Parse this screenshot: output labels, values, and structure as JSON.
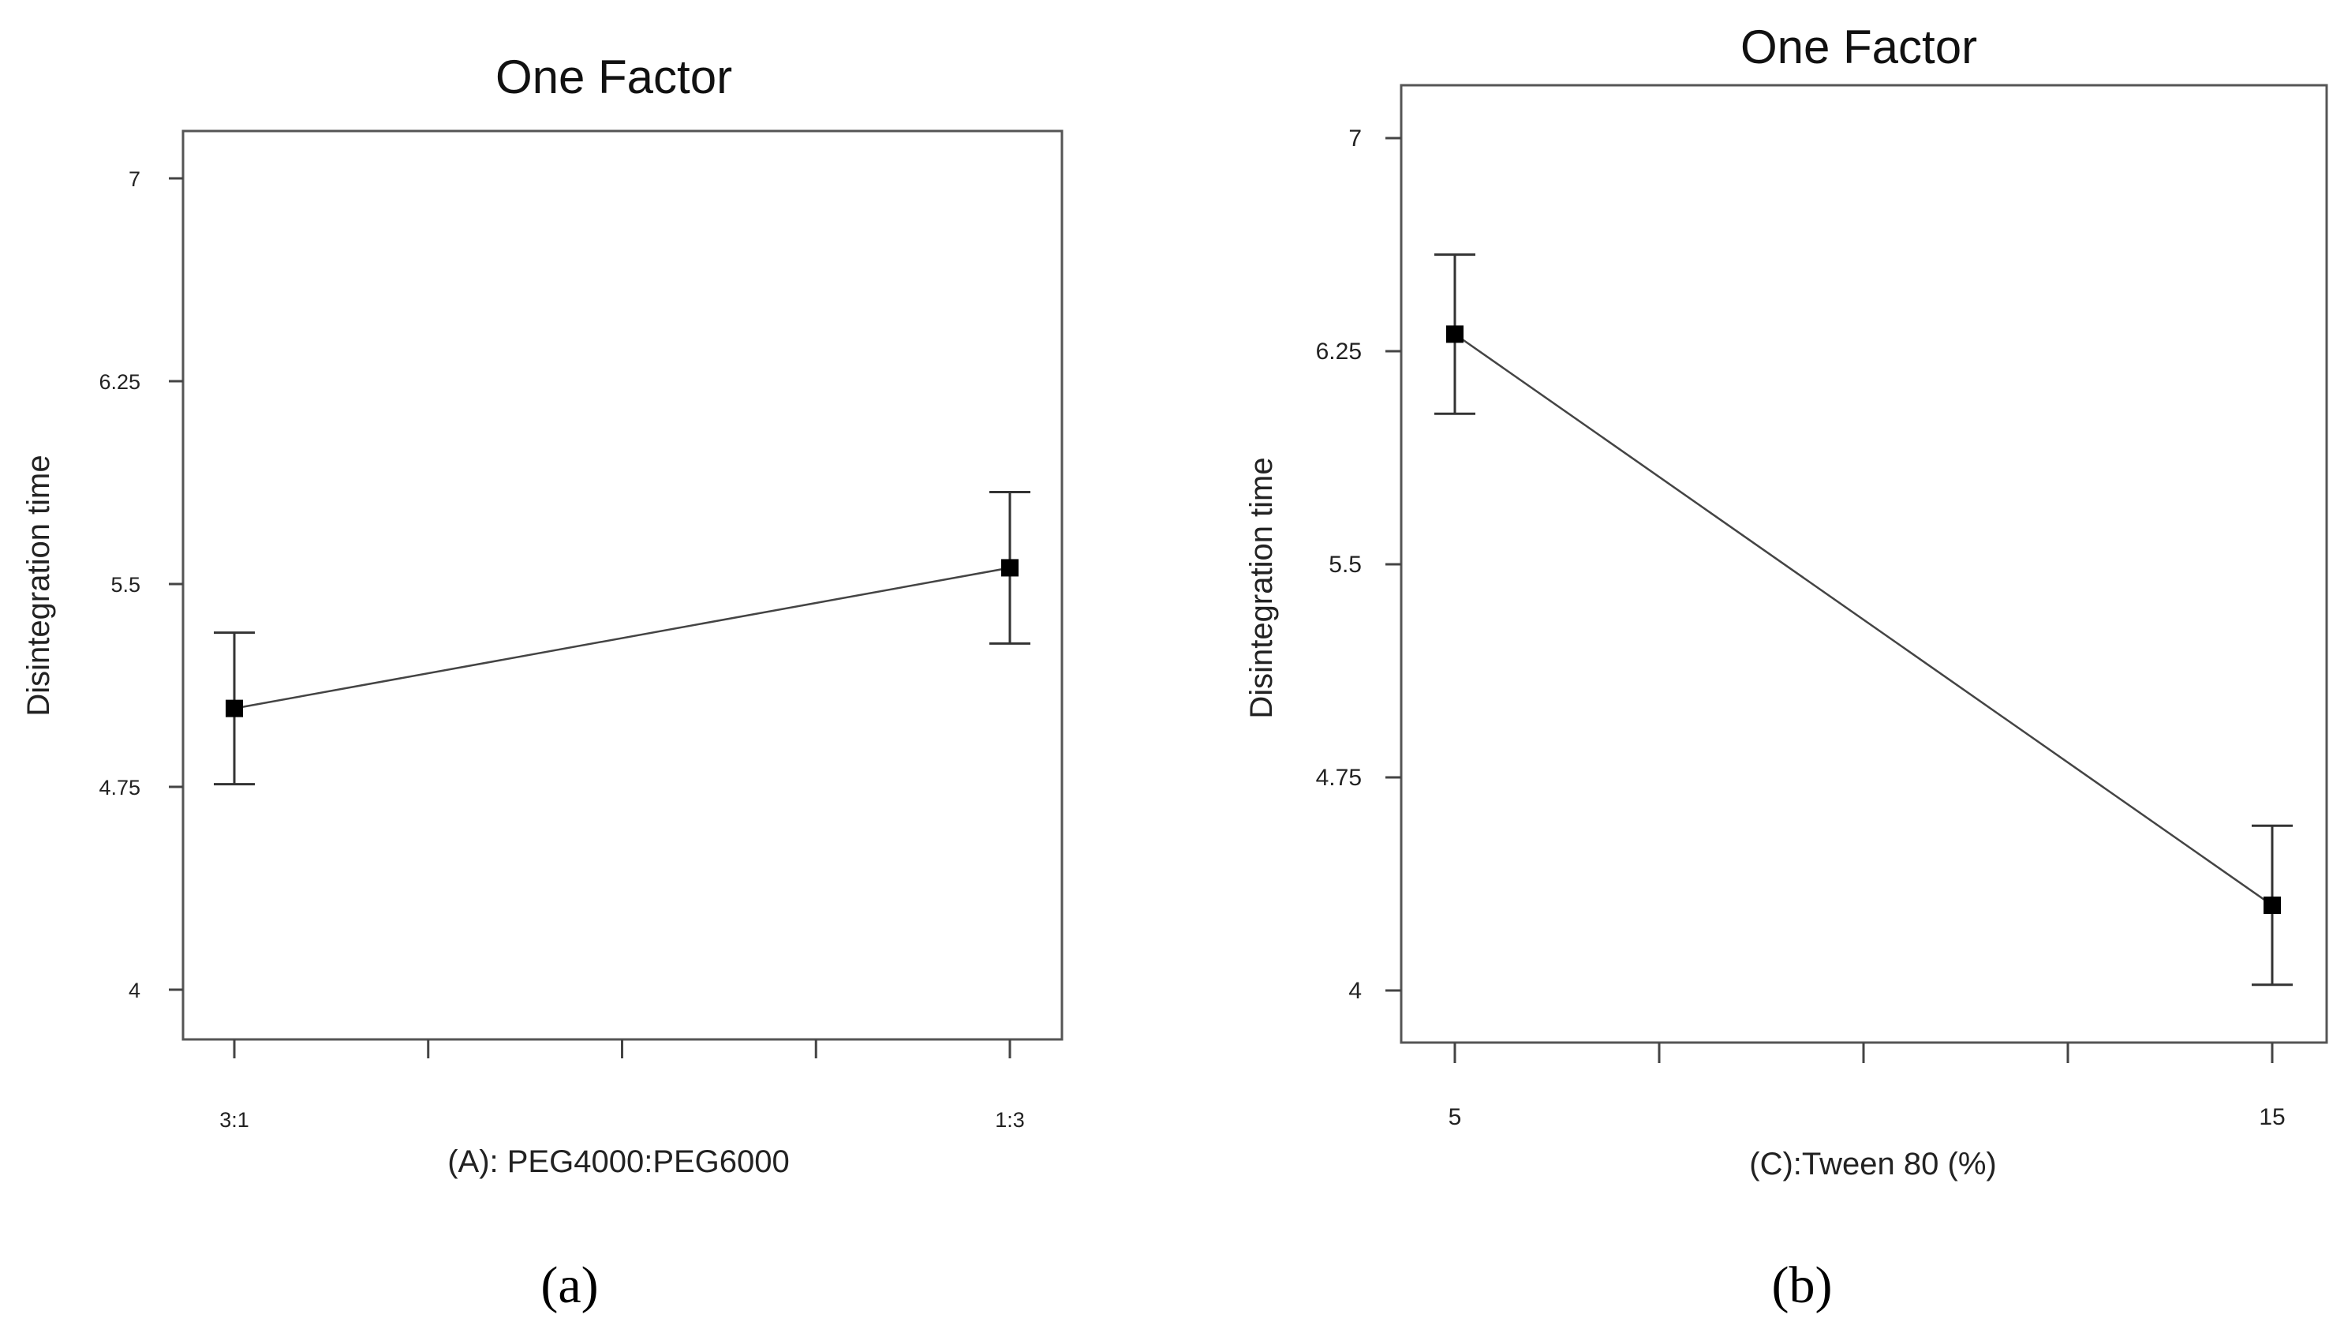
{
  "chart_data": [
    {
      "panel": "(a)",
      "type": "line",
      "title": "One Factor",
      "xlabel": "(A): PEG4000:PEG6000",
      "ylabel": "Disintegration time",
      "categories": [
        "3:1",
        "1:3"
      ],
      "values": [
        5.04,
        5.56
      ],
      "error_low": [
        4.76,
        5.28
      ],
      "error_high": [
        5.32,
        5.84
      ],
      "yticks": [
        "4",
        "4.75",
        "5.5",
        "6.25",
        "7"
      ],
      "ytick_values": [
        4,
        4.75,
        5.5,
        6.25,
        7
      ],
      "ylim": [
        3.8,
        7.2
      ],
      "minor_x_ticks": 3,
      "grid": false,
      "color": "#000000"
    },
    {
      "panel": "(b)",
      "type": "line",
      "title": "One Factor",
      "xlabel": "(C):Tween 80 (%)",
      "ylabel": "Disintegration time",
      "categories": [
        "5",
        "15"
      ],
      "values": [
        6.31,
        4.3
      ],
      "error_low": [
        6.03,
        4.02
      ],
      "error_high": [
        6.59,
        4.58
      ],
      "yticks": [
        "4",
        "4.75",
        "5.5",
        "6.25",
        "7"
      ],
      "ytick_values": [
        4,
        4.75,
        5.5,
        6.25,
        7
      ],
      "ylim": [
        3.8,
        7.2
      ],
      "minor_x_ticks": 3,
      "grid": false,
      "color": "#000000"
    }
  ]
}
